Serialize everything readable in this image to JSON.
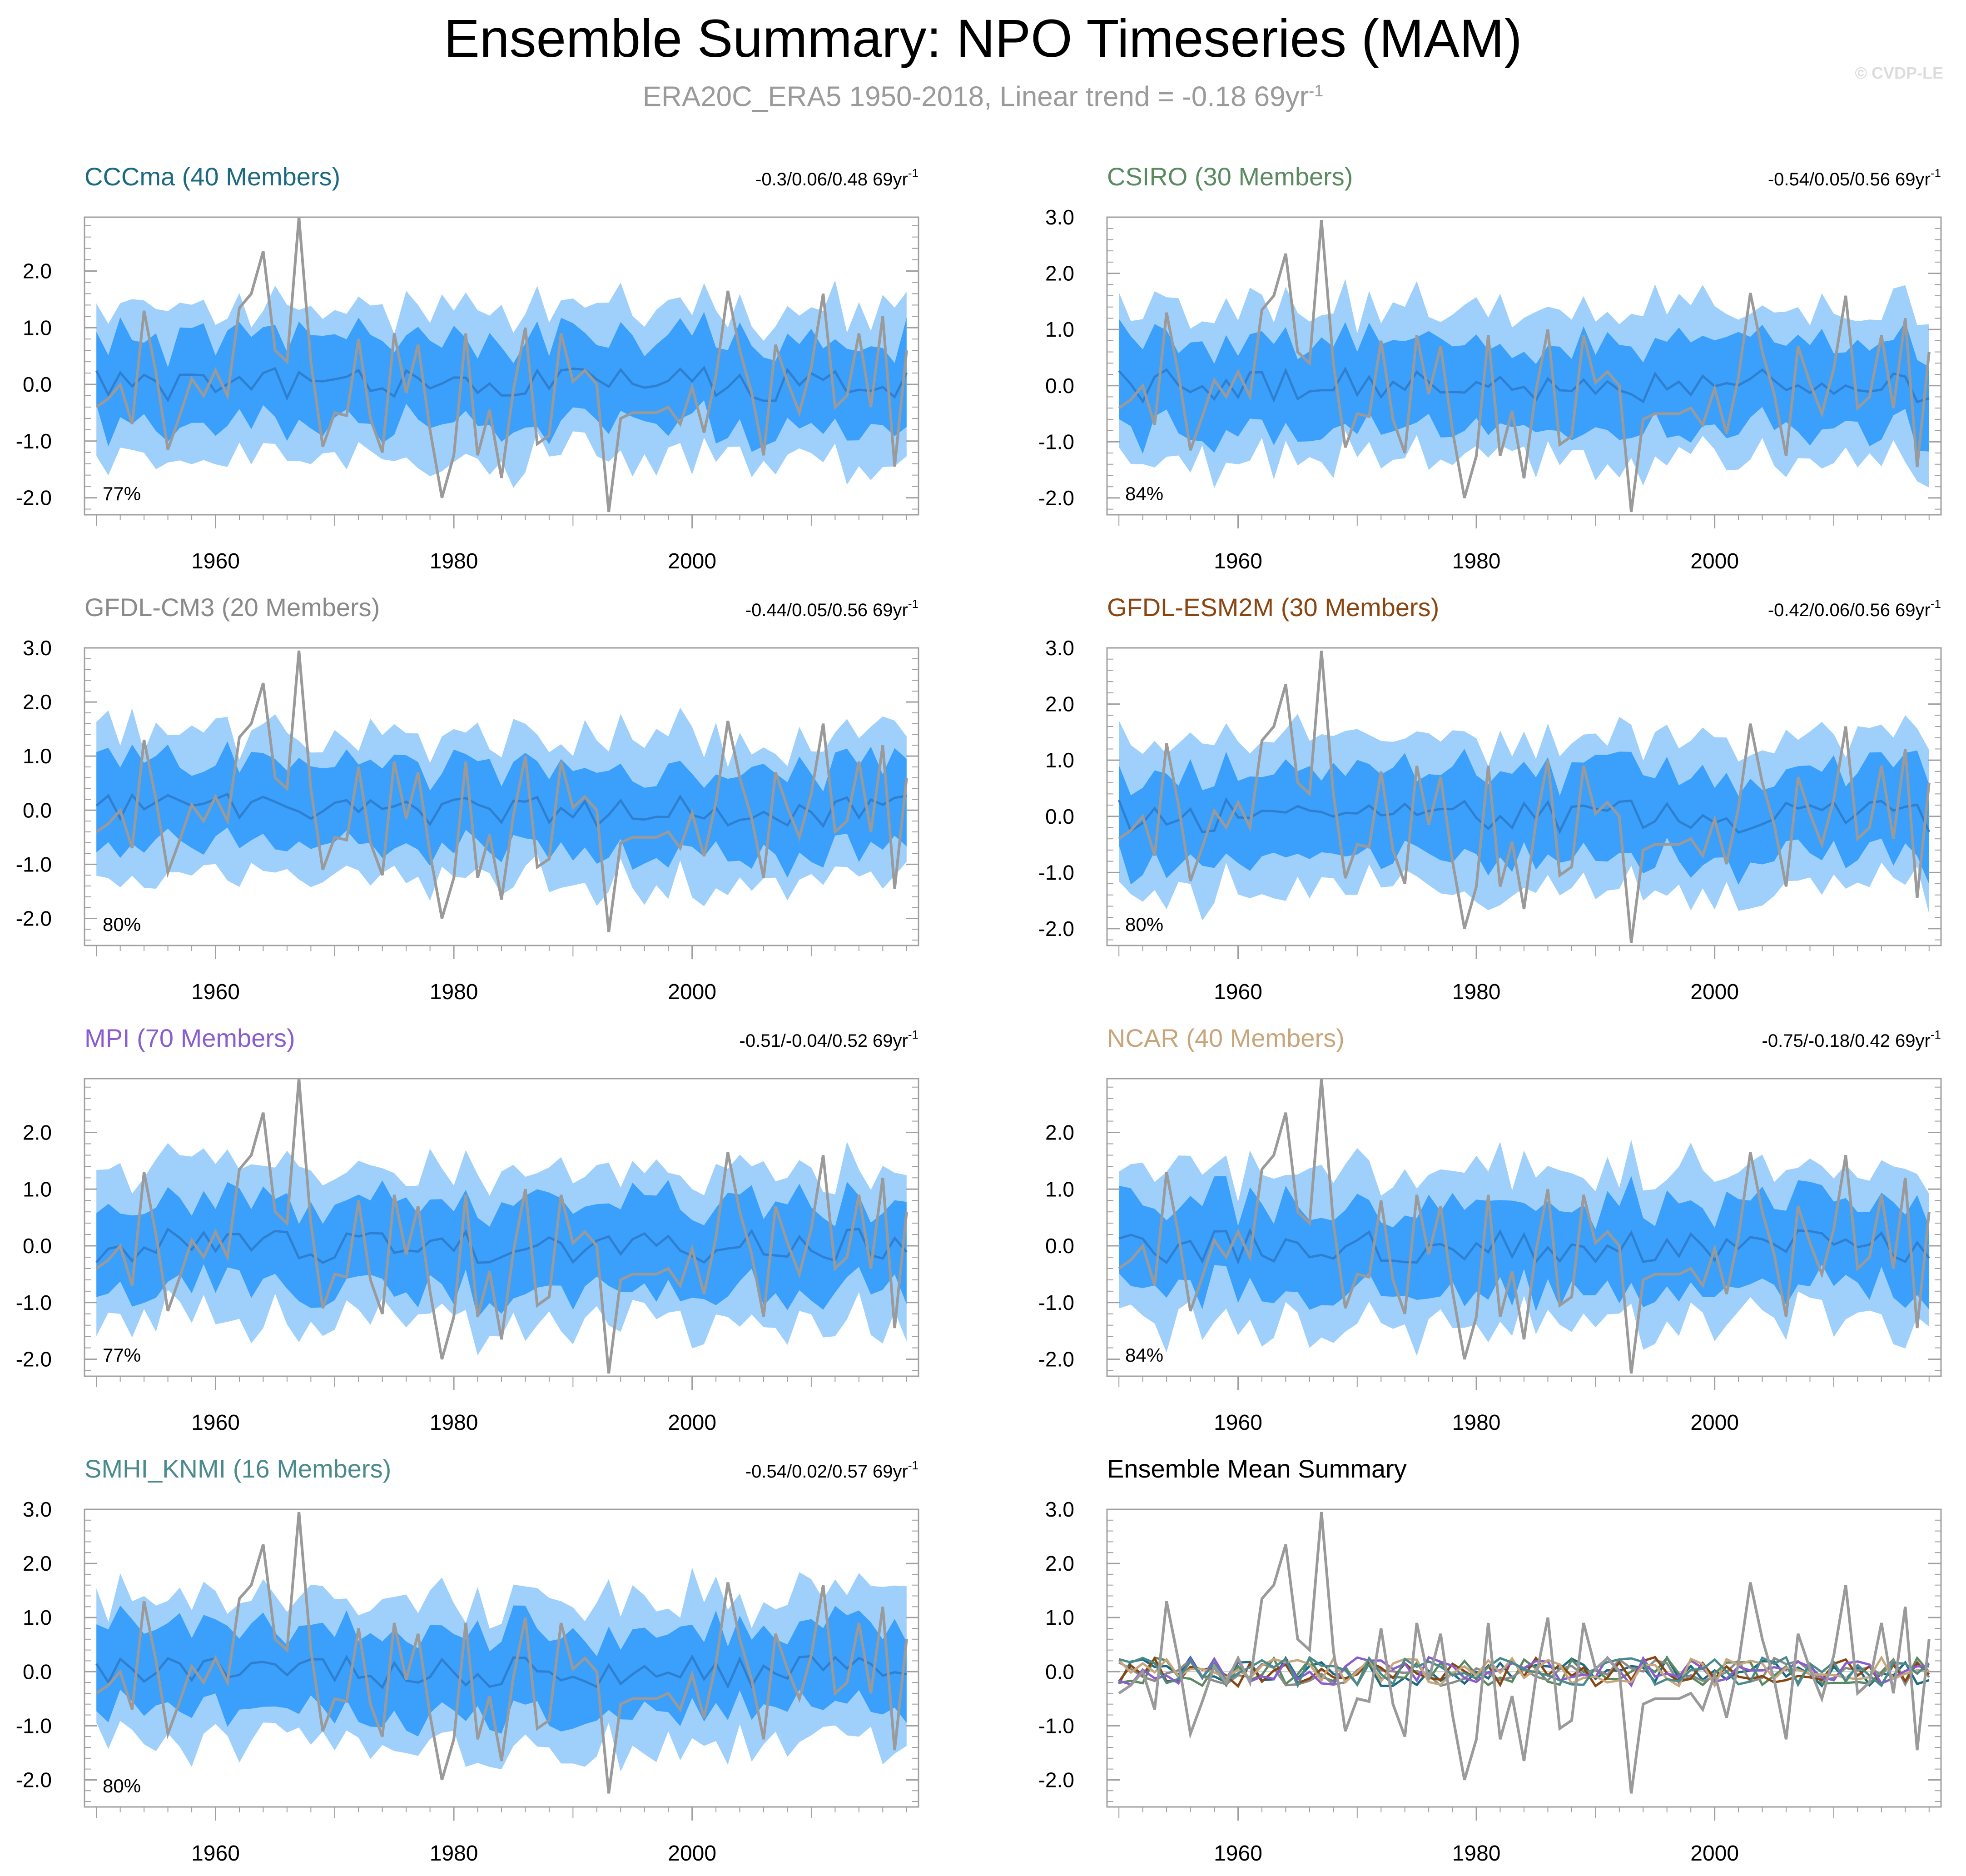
{
  "page": {
    "title": "Ensemble Summary: NPO Timeseries (MAM)",
    "subtitle_main": "ERA20C_ERA5 1950-2018, Linear trend = -0.18 69yr",
    "subtitle_sup": "-1",
    "watermark": "© CVDP-LE"
  },
  "colors": {
    "outer_band": "#9fd0fb",
    "inner_band": "#3aa0fb",
    "ens_mean_line": "#2f7fd0",
    "obs_line": "#9a9a9a",
    "frame": "#a0a0a0",
    "CCCma": "#1c6a82",
    "CSIRO": "#5a8a60",
    "GFDL-CM3": "#8a8a8a",
    "GFDL-ESM2M": "#8a4510",
    "MPI": "#8a5cd0",
    "NCAR": "#c8a67c",
    "SMHI_KNMI": "#4a8a8e"
  },
  "chart_data": [
    {
      "type": "area",
      "id": "CCCma",
      "title": "CCCma (40 Members)",
      "stat": "-0.3/0.06/0.48 69yr",
      "stat_sup": "-1",
      "pct": "77%",
      "yticks": [
        "-2.0",
        "-1.0",
        "0.0",
        "1.0",
        "2.0"
      ],
      "ylim": [
        -2.3,
        2.95
      ],
      "xticks": [
        "1960",
        "1980",
        "2000"
      ],
      "xlim": [
        1949,
        2019
      ],
      "seed": 11
    },
    {
      "type": "area",
      "id": "CSIRO",
      "title": "CSIRO (30 Members)",
      "stat": "-0.54/0.05/0.56 69yr",
      "stat_sup": "-1",
      "pct": "84%",
      "yticks": [
        "-2.0",
        "-1.0",
        "0.0",
        "1.0",
        "2.0",
        "3.0"
      ],
      "ylim": [
        -2.3,
        3.0
      ],
      "xticks": [
        "1960",
        "1980",
        "2000"
      ],
      "xlim": [
        1949,
        2019
      ],
      "seed": 23
    },
    {
      "type": "area",
      "id": "GFDL-CM3",
      "title": "GFDL-CM3 (20 Members)",
      "stat": "-0.44/0.05/0.56 69yr",
      "stat_sup": "-1",
      "pct": "80%",
      "yticks": [
        "-2.0",
        "-1.0",
        "0.0",
        "1.0",
        "2.0",
        "3.0"
      ],
      "ylim": [
        -2.5,
        3.0
      ],
      "xticks": [
        "1960",
        "1980",
        "2000"
      ],
      "xlim": [
        1949,
        2019
      ],
      "seed": 37
    },
    {
      "type": "area",
      "id": "GFDL-ESM2M",
      "title": "GFDL-ESM2M (30 Members)",
      "stat": "-0.42/0.06/0.56 69yr",
      "stat_sup": "-1",
      "pct": "80%",
      "yticks": [
        "-2.0",
        "-1.0",
        "0.0",
        "1.0",
        "2.0",
        "3.0"
      ],
      "ylim": [
        -2.3,
        3.0
      ],
      "xticks": [
        "1960",
        "1980",
        "2000"
      ],
      "xlim": [
        1949,
        2019
      ],
      "seed": 41
    },
    {
      "type": "area",
      "id": "MPI",
      "title": "MPI (70 Members)",
      "stat": "-0.51/-0.04/0.52 69yr",
      "stat_sup": "-1",
      "pct": "77%",
      "yticks": [
        "-2.0",
        "-1.0",
        "0.0",
        "1.0",
        "2.0"
      ],
      "ylim": [
        -2.3,
        2.95
      ],
      "xticks": [
        "1960",
        "1980",
        "2000"
      ],
      "xlim": [
        1949,
        2019
      ],
      "seed": 53
    },
    {
      "type": "area",
      "id": "NCAR",
      "title": "NCAR (40 Members)",
      "stat": "-0.75/-0.18/0.42 69yr",
      "stat_sup": "-1",
      "pct": "84%",
      "yticks": [
        "-2.0",
        "-1.0",
        "0.0",
        "1.0",
        "2.0"
      ],
      "ylim": [
        -2.3,
        2.95
      ],
      "xticks": [
        "1960",
        "1980",
        "2000"
      ],
      "xlim": [
        1949,
        2019
      ],
      "seed": 67
    },
    {
      "type": "area",
      "id": "SMHI_KNMI",
      "title": "SMHI_KNMI (16 Members)",
      "stat": "-0.54/0.02/0.57 69yr",
      "stat_sup": "-1",
      "pct": "80%",
      "yticks": [
        "-2.0",
        "-1.0",
        "0.0",
        "1.0",
        "2.0",
        "3.0"
      ],
      "ylim": [
        -2.5,
        3.0
      ],
      "xticks": [
        "1960",
        "1980",
        "2000"
      ],
      "xlim": [
        1949,
        2019
      ],
      "seed": 79
    },
    {
      "type": "line",
      "id": "summary",
      "title": "Ensemble Mean Summary",
      "yticks": [
        "-2.0",
        "-1.0",
        "0.0",
        "1.0",
        "2.0",
        "3.0"
      ],
      "ylim": [
        -2.5,
        3.0
      ],
      "xticks": [
        "1960",
        "1980",
        "2000"
      ],
      "xlim": [
        1949,
        2019
      ],
      "series": [
        "CCCma",
        "CSIRO",
        "GFDL-CM3",
        "GFDL-ESM2M",
        "MPI",
        "NCAR",
        "SMHI_KNMI"
      ]
    }
  ],
  "obs": {
    "name": "ERA20C_ERA5",
    "years": [
      1950,
      1951,
      1952,
      1953,
      1954,
      1955,
      1956,
      1957,
      1958,
      1959,
      1960,
      1961,
      1962,
      1963,
      1964,
      1965,
      1966,
      1967,
      1968,
      1969,
      1970,
      1971,
      1972,
      1973,
      1974,
      1975,
      1976,
      1977,
      1978,
      1979,
      1980,
      1981,
      1982,
      1983,
      1984,
      1985,
      1986,
      1987,
      1988,
      1989,
      1990,
      1991,
      1992,
      1993,
      1994,
      1995,
      1996,
      1997,
      1998,
      1999,
      2000,
      2001,
      2002,
      2003,
      2004,
      2005,
      2006,
      2007,
      2008,
      2009,
      2010,
      2011,
      2012,
      2013,
      2014,
      2015,
      2016,
      2017,
      2018
    ],
    "values": [
      -0.4,
      -0.25,
      0.0,
      -0.7,
      1.3,
      0.2,
      -1.15,
      -0.55,
      0.1,
      -0.2,
      0.25,
      -0.2,
      1.35,
      1.6,
      2.35,
      0.6,
      0.4,
      2.95,
      0.4,
      -1.1,
      -0.5,
      -0.55,
      0.8,
      -0.6,
      -1.2,
      0.9,
      -0.15,
      0.7,
      -0.8,
      -2.0,
      -1.25,
      0.9,
      -1.25,
      -0.45,
      -1.65,
      -0.1,
      1.0,
      -1.05,
      -0.9,
      0.9,
      0.05,
      0.25,
      0.0,
      -2.25,
      -0.6,
      -0.5,
      -0.5,
      -0.5,
      -0.4,
      -0.7,
      -0.05,
      -0.85,
      0.15,
      1.65,
      0.6,
      -0.15,
      -1.25,
      0.7,
      0.05,
      -0.5,
      0.3,
      1.6,
      -0.4,
      -0.2,
      0.9,
      -0.4,
      1.2,
      -1.45,
      0.6
    ]
  }
}
